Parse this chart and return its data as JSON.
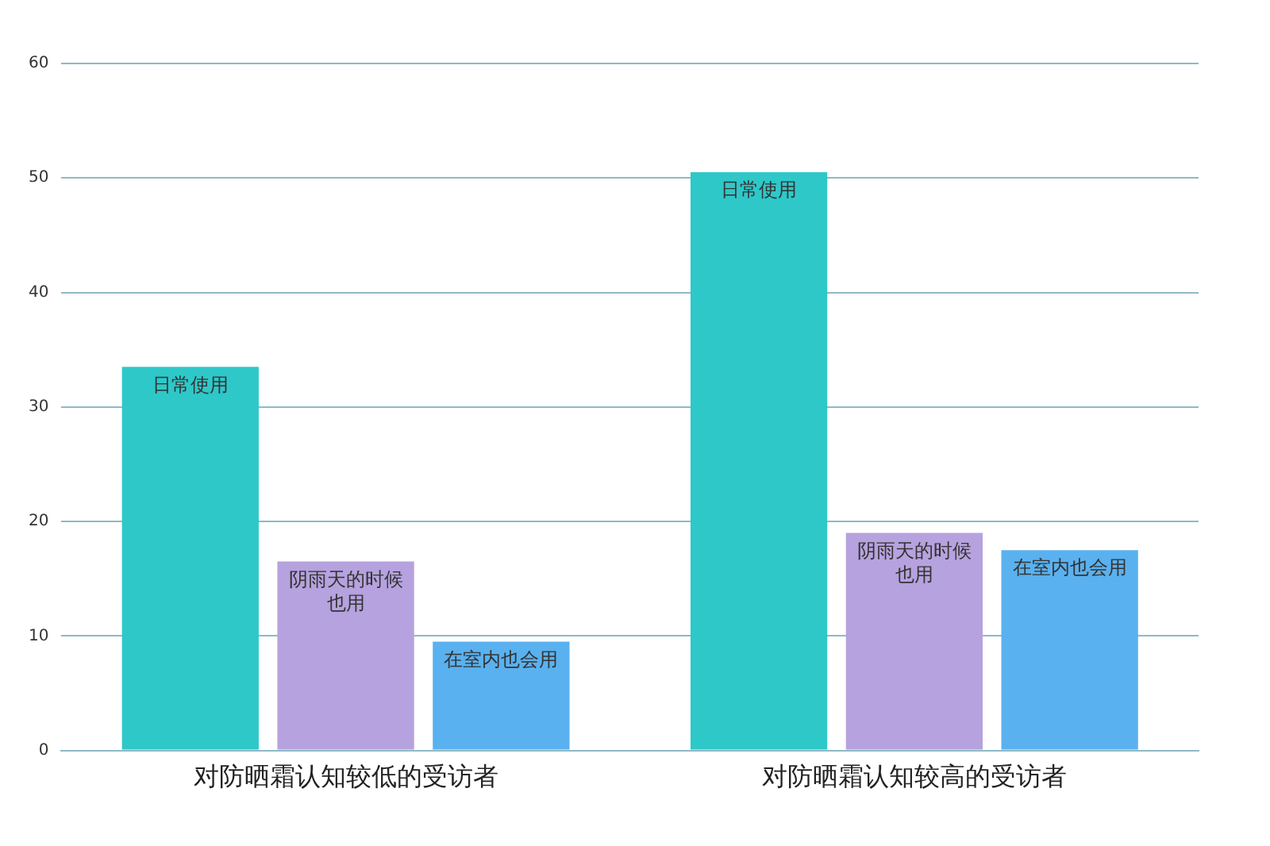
{
  "chart_data": {
    "type": "bar",
    "categories": [
      "对防晒霜认知较低的受访者",
      "对防晒霜认知较高的受访者"
    ],
    "series": [
      {
        "name": "日常使用",
        "color": "#2ec8c9",
        "values": [
          33.5,
          50.5
        ]
      },
      {
        "name": "阴雨天的时候也用",
        "color": "#b6a2de",
        "values": [
          16.5,
          19
        ]
      },
      {
        "name": "在室内也会用",
        "color": "#5ab1ef",
        "values": [
          9.5,
          17.5
        ]
      }
    ],
    "ylim": [
      0,
      60
    ],
    "yticks": [
      0,
      10,
      20,
      30,
      40,
      50,
      60
    ],
    "grid": "y",
    "legend": false
  }
}
